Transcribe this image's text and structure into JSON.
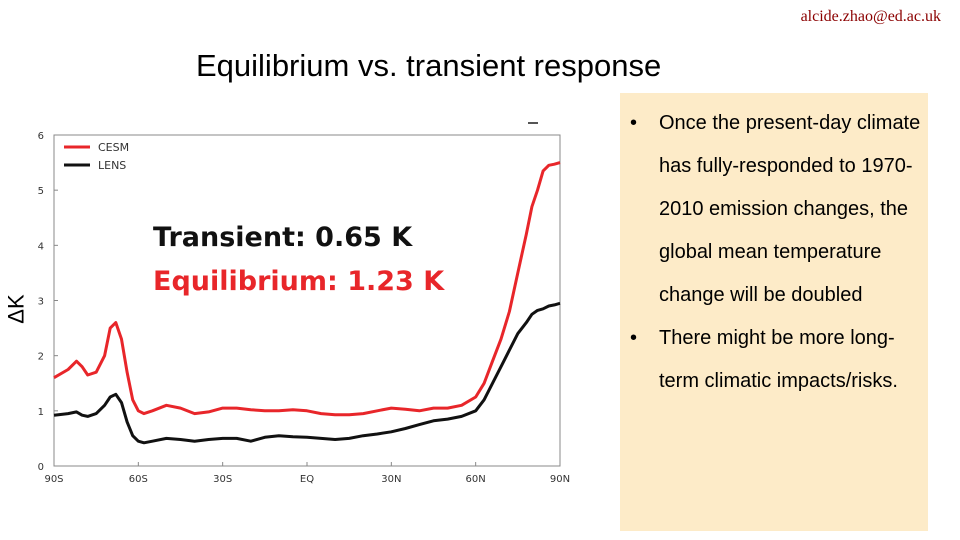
{
  "header": {
    "email": "alcide.zhao@ed.ac.uk",
    "title": "Equilibrium vs. transient response"
  },
  "chart_data": {
    "type": "line",
    "ylabel": "ΔK",
    "xlabel": "",
    "x_ticks": [
      "90S",
      "60S",
      "30S",
      "EQ",
      "30N",
      "60N",
      "90N"
    ],
    "y_ticks": [
      "0",
      "1",
      "2",
      "3",
      "4",
      "5",
      "6"
    ],
    "xlim": [
      -90,
      90
    ],
    "ylim": [
      0,
      6
    ],
    "grid": false,
    "legend_position": "top-left",
    "annotations": [
      {
        "text": "Transient: 0.65 K",
        "color": "#111111"
      },
      {
        "text": "Equilibrium: 1.23 K",
        "color": "#e8262a"
      }
    ],
    "series": [
      {
        "name": "CESM",
        "color": "#e8262a",
        "x": [
          -90,
          -85,
          -82,
          -80,
          -78,
          -75,
          -72,
          -70,
          -68,
          -66,
          -64,
          -62,
          -60,
          -58,
          -55,
          -50,
          -45,
          -40,
          -35,
          -30,
          -25,
          -20,
          -15,
          -10,
          -5,
          0,
          5,
          10,
          15,
          20,
          25,
          30,
          35,
          40,
          45,
          50,
          55,
          60,
          63,
          66,
          69,
          72,
          75,
          78,
          80,
          82,
          84,
          86,
          88,
          90
        ],
        "y": [
          1.6,
          1.75,
          1.9,
          1.8,
          1.65,
          1.7,
          2.0,
          2.5,
          2.6,
          2.3,
          1.7,
          1.2,
          1.0,
          0.95,
          1.0,
          1.1,
          1.05,
          0.95,
          0.98,
          1.05,
          1.05,
          1.02,
          1.0,
          1.0,
          1.02,
          1.0,
          0.95,
          0.93,
          0.93,
          0.95,
          1.0,
          1.05,
          1.03,
          1.0,
          1.05,
          1.05,
          1.1,
          1.25,
          1.5,
          1.9,
          2.3,
          2.8,
          3.5,
          4.2,
          4.7,
          5.0,
          5.35,
          5.45,
          5.47,
          5.5
        ]
      },
      {
        "name": "LENS",
        "color": "#111111",
        "x": [
          -90,
          -85,
          -82,
          -80,
          -78,
          -75,
          -72,
          -70,
          -68,
          -66,
          -64,
          -62,
          -60,
          -58,
          -55,
          -50,
          -45,
          -40,
          -35,
          -30,
          -25,
          -20,
          -15,
          -10,
          -5,
          0,
          5,
          10,
          15,
          20,
          25,
          30,
          35,
          40,
          45,
          50,
          55,
          60,
          63,
          66,
          69,
          72,
          75,
          78,
          80,
          82,
          84,
          86,
          88,
          90
        ],
        "y": [
          0.92,
          0.95,
          0.98,
          0.92,
          0.9,
          0.95,
          1.1,
          1.25,
          1.3,
          1.15,
          0.8,
          0.55,
          0.45,
          0.42,
          0.45,
          0.5,
          0.48,
          0.45,
          0.48,
          0.5,
          0.5,
          0.45,
          0.52,
          0.55,
          0.53,
          0.52,
          0.5,
          0.48,
          0.5,
          0.55,
          0.58,
          0.62,
          0.68,
          0.75,
          0.82,
          0.85,
          0.9,
          1.0,
          1.2,
          1.5,
          1.8,
          2.1,
          2.4,
          2.6,
          2.75,
          2.82,
          2.85,
          2.9,
          2.92,
          2.95
        ]
      }
    ]
  },
  "bullets": [
    "Once the present-day climate has fully-responded to 1970-2010 emission changes, the global mean temperature change will be doubled",
    "There might be more long-term climatic impacts/risks."
  ],
  "bullet_marker": "•",
  "colors": {
    "box_background": "#fdebc8",
    "email": "#8b0000",
    "cesm": "#e8262a",
    "lens": "#111111"
  }
}
